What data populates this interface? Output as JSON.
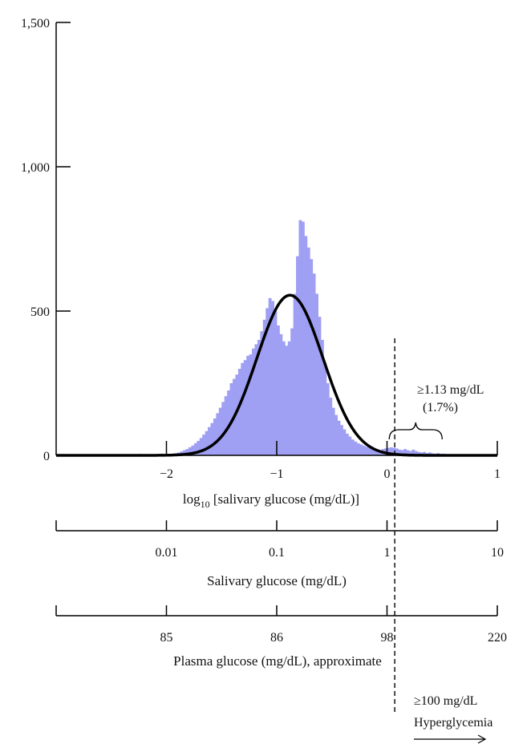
{
  "chart_data": {
    "type": "bar",
    "subtype": "histogram with fitted normal curve",
    "title": "",
    "xlabel_base": "log",
    "xlabel_sub": "10",
    "xlabel_rest": " [salivary glucose (mg/dL)]",
    "ylabel": "",
    "xlim": [
      -3,
      1
    ],
    "ylim": [
      0,
      1500
    ],
    "yticks": [
      0,
      500,
      1000,
      1500
    ],
    "ytick_labels": [
      "0",
      "500",
      "1,000",
      "1,500"
    ],
    "xticks": [
      -2,
      -1,
      0,
      1
    ],
    "xtick_labels": [
      "−2",
      "−1",
      "0",
      "1"
    ],
    "grid": false,
    "histogram": {
      "bin_width": 0.025,
      "color": "#9f9ff3",
      "bins": [
        [
          -2.65,
          4
        ],
        [
          -2.4,
          3
        ],
        [
          -2.25,
          5
        ],
        [
          -2.15,
          4
        ],
        [
          -2.05,
          6
        ],
        [
          -1.975,
          5
        ],
        [
          -1.95,
          6
        ],
        [
          -1.925,
          8
        ],
        [
          -1.9,
          10
        ],
        [
          -1.875,
          14
        ],
        [
          -1.85,
          18
        ],
        [
          -1.825,
          22
        ],
        [
          -1.8,
          28
        ],
        [
          -1.775,
          34
        ],
        [
          -1.75,
          42
        ],
        [
          -1.725,
          50
        ],
        [
          -1.7,
          60
        ],
        [
          -1.675,
          72
        ],
        [
          -1.65,
          84
        ],
        [
          -1.625,
          98
        ],
        [
          -1.6,
          112
        ],
        [
          -1.575,
          128
        ],
        [
          -1.55,
          146
        ],
        [
          -1.525,
          165
        ],
        [
          -1.5,
          185
        ],
        [
          -1.475,
          205
        ],
        [
          -1.45,
          225
        ],
        [
          -1.425,
          250
        ],
        [
          -1.4,
          265
        ],
        [
          -1.375,
          280
        ],
        [
          -1.35,
          300
        ],
        [
          -1.325,
          320
        ],
        [
          -1.3,
          330
        ],
        [
          -1.275,
          345
        ],
        [
          -1.25,
          350
        ],
        [
          -1.225,
          370
        ],
        [
          -1.2,
          385
        ],
        [
          -1.175,
          400
        ],
        [
          -1.15,
          430
        ],
        [
          -1.125,
          470
        ],
        [
          -1.1,
          510
        ],
        [
          -1.075,
          545
        ],
        [
          -1.05,
          535
        ],
        [
          -1.025,
          500
        ],
        [
          -1.0,
          450
        ],
        [
          -0.975,
          420
        ],
        [
          -0.95,
          395
        ],
        [
          -0.925,
          380
        ],
        [
          -0.9,
          395
        ],
        [
          -0.875,
          440
        ],
        [
          -0.85,
          560
        ],
        [
          -0.825,
          690
        ],
        [
          -0.8,
          815
        ],
        [
          -0.775,
          810
        ],
        [
          -0.75,
          760
        ],
        [
          -0.725,
          720
        ],
        [
          -0.7,
          680
        ],
        [
          -0.675,
          630
        ],
        [
          -0.65,
          560
        ],
        [
          -0.625,
          480
        ],
        [
          -0.6,
          400
        ],
        [
          -0.575,
          320
        ],
        [
          -0.55,
          250
        ],
        [
          -0.525,
          200
        ],
        [
          -0.5,
          165
        ],
        [
          -0.475,
          140
        ],
        [
          -0.45,
          120
        ],
        [
          -0.425,
          105
        ],
        [
          -0.4,
          90
        ],
        [
          -0.375,
          75
        ],
        [
          -0.35,
          65
        ],
        [
          -0.325,
          55
        ],
        [
          -0.3,
          48
        ],
        [
          -0.275,
          42
        ],
        [
          -0.25,
          38
        ],
        [
          -0.225,
          34
        ],
        [
          -0.2,
          30
        ],
        [
          -0.175,
          27
        ],
        [
          -0.15,
          25
        ],
        [
          -0.125,
          22
        ],
        [
          -0.1,
          20
        ],
        [
          -0.075,
          18
        ],
        [
          -0.05,
          22
        ],
        [
          -0.025,
          24
        ],
        [
          0.0,
          26
        ],
        [
          0.025,
          28
        ],
        [
          0.05,
          26
        ],
        [
          0.075,
          24
        ],
        [
          0.1,
          20
        ],
        [
          0.125,
          18
        ],
        [
          0.15,
          22
        ],
        [
          0.175,
          18
        ],
        [
          0.2,
          15
        ],
        [
          0.225,
          20
        ],
        [
          0.25,
          15
        ],
        [
          0.275,
          12
        ],
        [
          0.3,
          10
        ],
        [
          0.325,
          12
        ],
        [
          0.35,
          8
        ],
        [
          0.375,
          10
        ],
        [
          0.4,
          7
        ],
        [
          0.425,
          6
        ],
        [
          0.45,
          8
        ],
        [
          0.475,
          5
        ],
        [
          0.5,
          6
        ],
        [
          0.55,
          4
        ]
      ]
    },
    "normal_fit": {
      "mean": -0.88,
      "sd": 0.3,
      "peak": 555,
      "color": "#000000"
    },
    "threshold_x": 0.07,
    "bracket_range": [
      0.02,
      0.5
    ],
    "annotation_lines": [
      "≥1.13 mg/dL",
      "(1.7%)"
    ],
    "secondary_axes": [
      {
        "title": "Salivary glucose (mg/dL)",
        "ticks": [
          -3,
          -2,
          -1,
          0,
          1
        ],
        "tick_labels": [
          "",
          "0.01",
          "0.1",
          "1",
          "10"
        ]
      },
      {
        "title": "Plasma glucose (mg/dL), approximate",
        "ticks": [
          -3,
          -2,
          -1,
          0,
          1
        ],
        "tick_labels": [
          "",
          "85",
          "86",
          "98",
          "220"
        ]
      }
    ],
    "hyperglycemia_lines": [
      "≥100 mg/dL",
      "Hyperglycemia"
    ]
  }
}
